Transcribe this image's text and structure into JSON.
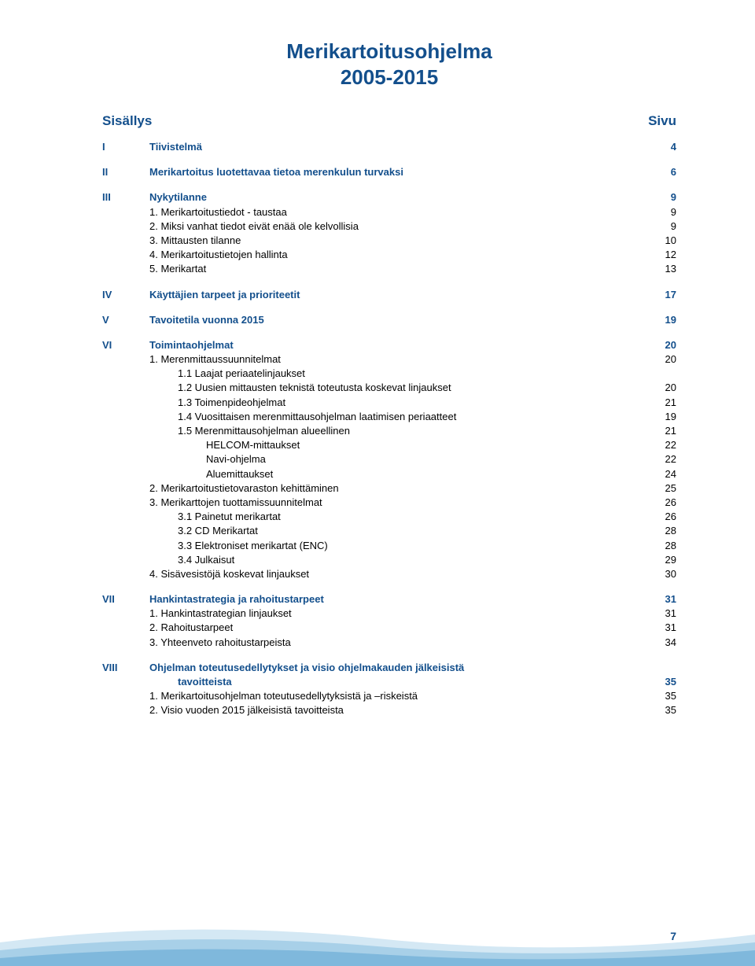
{
  "colors": {
    "heading": "#134f8c",
    "text": "#000000",
    "background": "#ffffff",
    "wave_light": "#d4e8f4",
    "wave_mid": "#a8d0e8",
    "wave_dark": "#7fb8dc"
  },
  "title": "Merikartoitusohjelma",
  "subtitle": "2005-2015",
  "heading_left": "Sisällys",
  "heading_right": "Sivu",
  "page_number": "7",
  "toc": [
    {
      "type": "section",
      "roman": "I",
      "label": "Tiivistelmä",
      "page": "4"
    },
    {
      "type": "section",
      "roman": "II",
      "label": "Merikartoitus luotettavaa tietoa merenkulun turvaksi",
      "page": "6"
    },
    {
      "type": "section",
      "roman": "III",
      "label": "Nykytilanne",
      "page": "9"
    },
    {
      "type": "sub",
      "label": "1.  Merikartoitustiedot - taustaa",
      "page": "9"
    },
    {
      "type": "sub",
      "label": "2.  Miksi vanhat tiedot eivät enää ole kelvollisia",
      "page": "9"
    },
    {
      "type": "sub",
      "label": "3.  Mittausten tilanne",
      "page": "10"
    },
    {
      "type": "sub",
      "label": "4.  Merikartoitustietojen hallinta",
      "page": "12"
    },
    {
      "type": "sub",
      "label": "5.  Merikartat",
      "page": "13"
    },
    {
      "type": "section",
      "roman": "IV",
      "label": "Käyttäjien tarpeet ja prioriteetit",
      "page": "17"
    },
    {
      "type": "section",
      "roman": "V",
      "label": "Tavoitetila  vuonna 2015",
      "page": "19"
    },
    {
      "type": "section",
      "roman": "VI",
      "label": "Toimintaohjelmat",
      "page": "20"
    },
    {
      "type": "sub",
      "label": "1.  Merenmittaussuunnitelmat",
      "page": "20"
    },
    {
      "type": "sub4",
      "label": "1.1  Laajat periaatelinjaukset",
      "page": ""
    },
    {
      "type": "sub4",
      "label": "1.2  Uusien mittausten teknistä toteutusta koskevat linjaukset",
      "page": "20"
    },
    {
      "type": "sub4",
      "label": "1.3  Toimenpideohjelmat",
      "page": "21"
    },
    {
      "type": "sub4",
      "label": "1.4  Vuosittaisen merenmittausohjelman laatimisen periaatteet",
      "page": "19"
    },
    {
      "type": "sub4",
      "label": "1.5  Merenmittausohjelman alueellinen",
      "page": "21"
    },
    {
      "type": "sub3",
      "label": "HELCOM-mittaukset",
      "page": "22"
    },
    {
      "type": "sub3",
      "label": "Navi-ohjelma",
      "page": "22"
    },
    {
      "type": "sub3",
      "label": "Aluemittaukset",
      "page": "24"
    },
    {
      "type": "sub",
      "label": "2.  Merikartoitustietovaraston kehittäminen",
      "page": "25"
    },
    {
      "type": "sub",
      "label": "3.  Merikarttojen tuottamissuunnitelmat",
      "page": "26"
    },
    {
      "type": "sub4",
      "label": "3.1  Painetut merikartat",
      "page": "26"
    },
    {
      "type": "sub4",
      "label": "3.2  CD Merikartat",
      "page": "28"
    },
    {
      "type": "sub4",
      "label": "3.3  Elektroniset merikartat (ENC)",
      "page": "28"
    },
    {
      "type": "sub4",
      "label": "3.4  Julkaisut",
      "page": "29"
    },
    {
      "type": "sub",
      "label": "4.  Sisävesistöjä koskevat linjaukset",
      "page": "30"
    },
    {
      "type": "section",
      "roman": "VII",
      "label": "Hankintastrategia ja rahoitustarpeet",
      "page": "31"
    },
    {
      "type": "sub",
      "label": "1. Hankintastrategian linjaukset",
      "page": "31"
    },
    {
      "type": "sub",
      "label": "2. Rahoitustarpeet",
      "page": "31"
    },
    {
      "type": "sub",
      "label": "3. Yhteenveto rahoitustarpeista",
      "page": "34"
    },
    {
      "type": "section",
      "roman": "VIII",
      "label": "Ohjelman toteutusedellytykset ja visio ohjelmakauden jälkeisistä",
      "page": ""
    },
    {
      "type": "sectioncont",
      "label": "tavoitteista",
      "page": "35"
    },
    {
      "type": "sub",
      "label": "1.  Merikartoitusohjelman toteutusedellytyksistä ja –riskeistä",
      "page": "35"
    },
    {
      "type": "sub",
      "label": "2.  Visio vuoden 2015 jälkeisistä tavoitteista",
      "page": "35"
    }
  ]
}
